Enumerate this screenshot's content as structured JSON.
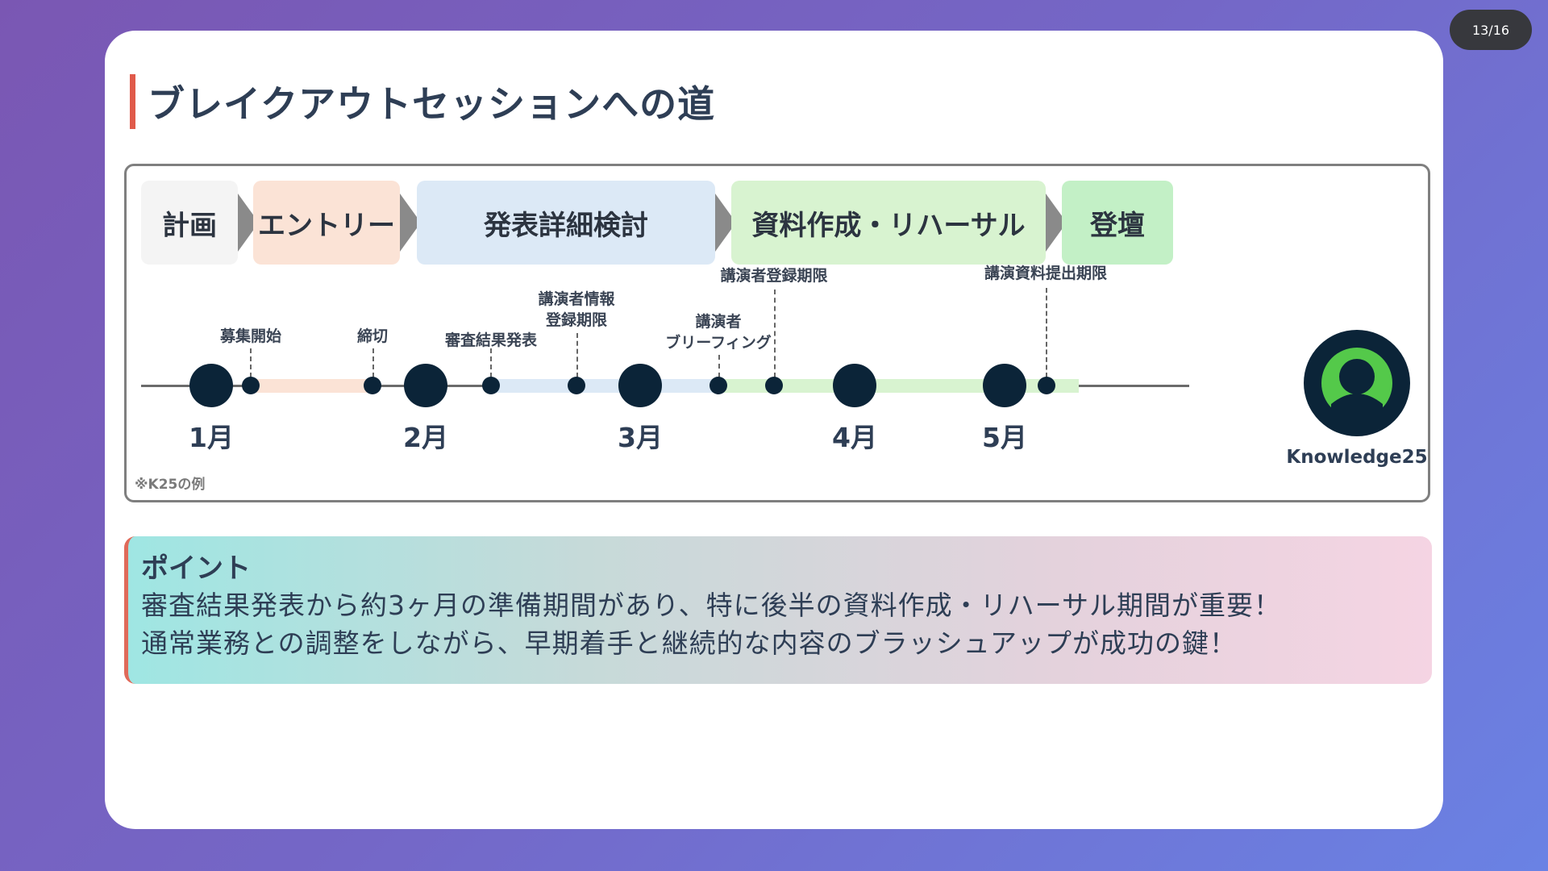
{
  "page_counter": "13/16",
  "title": "ブレイクアウトセッションへの道",
  "phases": [
    {
      "label": "計画",
      "color": "#f4f4f4"
    },
    {
      "label": "エントリー",
      "color": "#fbe3d6"
    },
    {
      "label": "発表詳細検討",
      "color": "#dce9f6"
    },
    {
      "label": "資料作成・リハーサル",
      "color": "#d8f3d0"
    },
    {
      "label": "登壇",
      "color": "#c3f0c6"
    }
  ],
  "months": [
    "1月",
    "2月",
    "3月",
    "4月",
    "5月"
  ],
  "events": {
    "recruit_start": "募集開始",
    "deadline": "締切",
    "review_results": "審査結果発表",
    "speaker_info_line1": "講演者情報",
    "speaker_info_line2": "登録期限",
    "briefing_line1": "講演者",
    "briefing_line2": "ブリーフィング",
    "speaker_registration": "講演者登録期限",
    "materials_deadline": "講演資料提出期限"
  },
  "event_logo": "Knowledge25",
  "footnote": "※K25の例",
  "point": {
    "heading": "ポイント",
    "line1": "審査結果発表から約3ヶ月の準備期間があり、特に後半の資料作成・リハーサル期間が重要！",
    "line2": "通常業務との調整をしながら、早期着手と継続的な内容のブラッシュアップが成功の鍵！"
  },
  "colors": {
    "accent_red": "#e05a4a",
    "dark_navy": "#0b2438",
    "logo_green": "#54c94a"
  }
}
